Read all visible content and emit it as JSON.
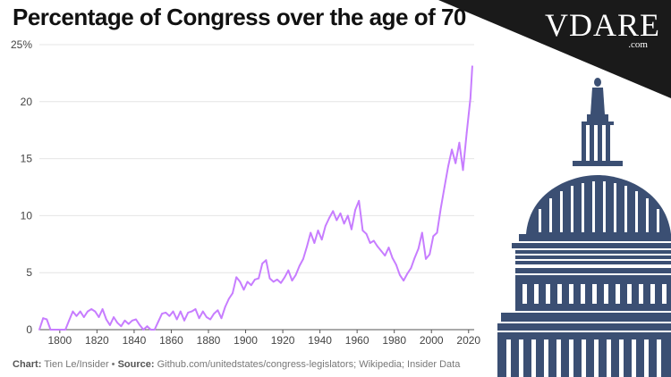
{
  "title": "Percentage of Congress over the age of 70",
  "source": {
    "chart_label": "Chart:",
    "chart_value": "Tien Le/Insider",
    "separator": "•",
    "source_label": "Source:",
    "source_value": "Github.com/unitedstates/congress-legislators; Wikipedia; Insider Data"
  },
  "logo": {
    "text": "VDARE",
    "suffix": ".com"
  },
  "colors": {
    "line": "#c77dff",
    "grid": "#e4e4e4",
    "text": "#111111",
    "capitol": "#3b4f73",
    "corner": "#1a1a1a"
  },
  "chart_data": {
    "type": "line",
    "title": "Percentage of Congress over the age of 70",
    "xlabel": "",
    "ylabel": "",
    "xlim": [
      1789,
      2023
    ],
    "ylim": [
      0,
      25
    ],
    "x_ticks": [
      1800,
      1820,
      1840,
      1860,
      1880,
      1900,
      1920,
      1940,
      1960,
      1980,
      2000,
      2020
    ],
    "y_ticks": [
      0,
      5,
      10,
      15,
      20,
      25
    ],
    "y_tick_labels": [
      "0",
      "5",
      "10",
      "15",
      "20",
      "25%"
    ],
    "grid": true,
    "series": [
      {
        "x": [
          1789,
          1791,
          1793,
          1795,
          1797,
          1799,
          1801,
          1803,
          1805,
          1807,
          1809,
          1811,
          1813,
          1815,
          1817,
          1819,
          1821,
          1823,
          1825,
          1827,
          1829,
          1831,
          1833,
          1835,
          1837,
          1839,
          1841,
          1843,
          1845,
          1847,
          1849,
          1851,
          1853,
          1855,
          1857,
          1859,
          1861,
          1863,
          1865,
          1867,
          1869,
          1871,
          1873,
          1875,
          1877,
          1879,
          1881,
          1883,
          1885,
          1887,
          1889,
          1891,
          1893,
          1895,
          1897,
          1899,
          1901,
          1903,
          1905,
          1907,
          1909,
          1911,
          1913,
          1915,
          1917,
          1919,
          1921,
          1923,
          1925,
          1927,
          1929,
          1931,
          1933,
          1935,
          1937,
          1939,
          1941,
          1943,
          1945,
          1947,
          1949,
          1951,
          1953,
          1955,
          1957,
          1959,
          1961,
          1963,
          1965,
          1967,
          1969,
          1971,
          1973,
          1975,
          1977,
          1979,
          1981,
          1983,
          1985,
          1987,
          1989,
          1991,
          1993,
          1995,
          1997,
          1999,
          2001,
          2003,
          2005,
          2007,
          2009,
          2011,
          2013,
          2015,
          2017,
          2019,
          2021,
          2022
        ],
        "values": [
          0,
          1,
          0.9,
          0,
          0,
          0,
          0,
          0,
          0.8,
          1.6,
          1.2,
          1.6,
          1.1,
          1.6,
          1.8,
          1.6,
          1.1,
          1.8,
          0.9,
          0.4,
          1.1,
          0.6,
          0.3,
          0.8,
          0.5,
          0.8,
          0.9,
          0.4,
          0,
          0.3,
          0,
          0,
          0.7,
          1.4,
          1.5,
          1.2,
          1.6,
          0.9,
          1.6,
          0.8,
          1.5,
          1.6,
          1.8,
          1,
          1.6,
          1.1,
          0.9,
          1.4,
          1.7,
          1,
          2,
          2.7,
          3.2,
          4.6,
          4.2,
          3.5,
          4.2,
          3.9,
          4.4,
          4.5,
          5.8,
          6.1,
          4.5,
          4.2,
          4.4,
          4.1,
          4.6,
          5.2,
          4.3,
          4.8,
          5.6,
          6.2,
          7.3,
          8.5,
          7.6,
          8.7,
          7.9,
          9.1,
          9.8,
          10.4,
          9.6,
          10.2,
          9.3,
          10,
          8.8,
          10.5,
          11.3,
          8.7,
          8.4,
          7.6,
          7.8,
          7.3,
          6.9,
          6.5,
          7.2,
          6.3,
          5.7,
          4.8,
          4.3,
          4.9,
          5.4,
          6.3,
          7.1,
          8.5,
          6.2,
          6.6,
          8.2,
          8.5,
          10.6,
          12.5,
          14.3,
          15.8,
          14.6,
          16.4,
          14,
          17.3,
          20.3,
          23.1
        ]
      }
    ]
  }
}
